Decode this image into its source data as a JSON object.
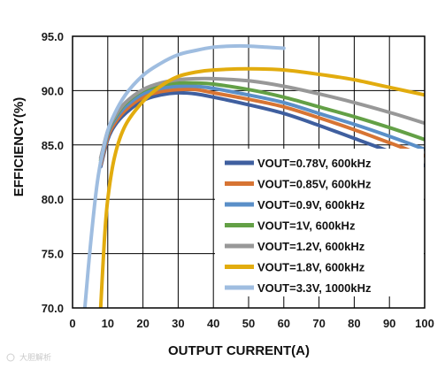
{
  "chart_data": {
    "type": "line",
    "title": "",
    "xlabel": "OUTPUT CURRENT(A)",
    "ylabel": "EFFICIENCY(%)",
    "xlim": [
      0,
      100
    ],
    "ylim": [
      70,
      95
    ],
    "x_ticks": [
      0,
      10,
      20,
      30,
      40,
      50,
      60,
      70,
      80,
      90,
      100
    ],
    "y_ticks": [
      70.0,
      75.0,
      80.0,
      85.0,
      90.0,
      95.0
    ],
    "x_tick_labels": [
      "0",
      "10",
      "20",
      "30",
      "40",
      "50",
      "60",
      "70",
      "80",
      "90",
      "100"
    ],
    "y_tick_labels": [
      "70.0",
      "75.0",
      "80.0",
      "85.0",
      "90.0",
      "95.0"
    ],
    "grid": true,
    "legend_position": "bottom-right",
    "series": [
      {
        "name": "VOUT=0.78V, 600kHz",
        "color": "#3f5f9f",
        "points": [
          [
            8,
            83.0
          ],
          [
            10,
            85.5
          ],
          [
            12,
            86.8
          ],
          [
            15,
            87.9
          ],
          [
            20,
            89.1
          ],
          [
            25,
            89.6
          ],
          [
            30,
            89.8
          ],
          [
            35,
            89.7
          ],
          [
            40,
            89.4
          ],
          [
            50,
            88.7
          ],
          [
            60,
            87.9
          ],
          [
            70,
            86.8
          ],
          [
            80,
            85.6
          ],
          [
            90,
            84.4
          ],
          [
            100,
            83.1
          ]
        ]
      },
      {
        "name": "VOUT=0.85V, 600kHz",
        "color": "#d77433",
        "points": [
          [
            8,
            83.2
          ],
          [
            10,
            85.7
          ],
          [
            12,
            87.0
          ],
          [
            15,
            88.2
          ],
          [
            20,
            89.4
          ],
          [
            25,
            89.9
          ],
          [
            30,
            90.1
          ],
          [
            35,
            90.1
          ],
          [
            40,
            89.8
          ],
          [
            50,
            89.2
          ],
          [
            60,
            88.5
          ],
          [
            70,
            87.5
          ],
          [
            80,
            86.4
          ],
          [
            90,
            85.2
          ],
          [
            100,
            84.0
          ]
        ]
      },
      {
        "name": "VOUT=0.9V, 600kHz",
        "color": "#5a8fc8",
        "points": [
          [
            8,
            83.4
          ],
          [
            10,
            86.0
          ],
          [
            12,
            87.3
          ],
          [
            15,
            88.5
          ],
          [
            20,
            89.7
          ],
          [
            25,
            90.2
          ],
          [
            30,
            90.4
          ],
          [
            35,
            90.4
          ],
          [
            40,
            90.2
          ],
          [
            50,
            89.6
          ],
          [
            60,
            88.9
          ],
          [
            70,
            87.9
          ],
          [
            80,
            86.9
          ],
          [
            90,
            85.8
          ],
          [
            100,
            84.6
          ]
        ]
      },
      {
        "name": "VOUT=1V, 600kHz",
        "color": "#63a046",
        "points": [
          [
            8,
            83.6
          ],
          [
            10,
            86.2
          ],
          [
            12,
            87.5
          ],
          [
            15,
            88.8
          ],
          [
            20,
            90.0
          ],
          [
            25,
            90.5
          ],
          [
            30,
            90.7
          ],
          [
            35,
            90.7
          ],
          [
            40,
            90.6
          ],
          [
            50,
            90.1
          ],
          [
            60,
            89.4
          ],
          [
            70,
            88.5
          ],
          [
            80,
            87.6
          ],
          [
            90,
            86.6
          ],
          [
            100,
            85.5
          ]
        ]
      },
      {
        "name": "VOUT=1.2V, 600kHz",
        "color": "#989898",
        "points": [
          [
            8,
            83.8
          ],
          [
            10,
            86.3
          ],
          [
            12,
            87.6
          ],
          [
            15,
            88.9
          ],
          [
            20,
            90.1
          ],
          [
            25,
            90.7
          ],
          [
            30,
            91.0
          ],
          [
            35,
            91.1
          ],
          [
            40,
            91.1
          ],
          [
            50,
            90.9
          ],
          [
            60,
            90.4
          ],
          [
            70,
            89.7
          ],
          [
            80,
            88.9
          ],
          [
            90,
            88.0
          ],
          [
            100,
            87.0
          ]
        ]
      },
      {
        "name": "VOUT=1.8V, 600kHz",
        "color": "#e2ac0e",
        "points": [
          [
            8,
            70.0
          ],
          [
            9,
            76.0
          ],
          [
            10,
            80.0
          ],
          [
            12,
            84.0
          ],
          [
            15,
            86.8
          ],
          [
            20,
            89.0
          ],
          [
            25,
            90.4
          ],
          [
            30,
            91.3
          ],
          [
            35,
            91.7
          ],
          [
            40,
            91.9
          ],
          [
            50,
            92.0
          ],
          [
            60,
            91.9
          ],
          [
            70,
            91.5
          ],
          [
            80,
            91.0
          ],
          [
            90,
            90.3
          ],
          [
            100,
            89.6
          ]
        ]
      },
      {
        "name": "VOUT=3.3V, 1000kHz",
        "color": "#9fbde0",
        "points": [
          [
            3.5,
            70.0
          ],
          [
            5,
            75.5
          ],
          [
            7,
            81.5
          ],
          [
            9,
            85.0
          ],
          [
            11,
            87.2
          ],
          [
            15,
            89.6
          ],
          [
            20,
            91.4
          ],
          [
            25,
            92.5
          ],
          [
            30,
            93.3
          ],
          [
            35,
            93.7
          ],
          [
            40,
            94.0
          ],
          [
            45,
            94.1
          ],
          [
            50,
            94.1
          ],
          [
            55,
            94.0
          ],
          [
            60,
            93.9
          ]
        ]
      }
    ]
  },
  "watermark": "大胆解析"
}
